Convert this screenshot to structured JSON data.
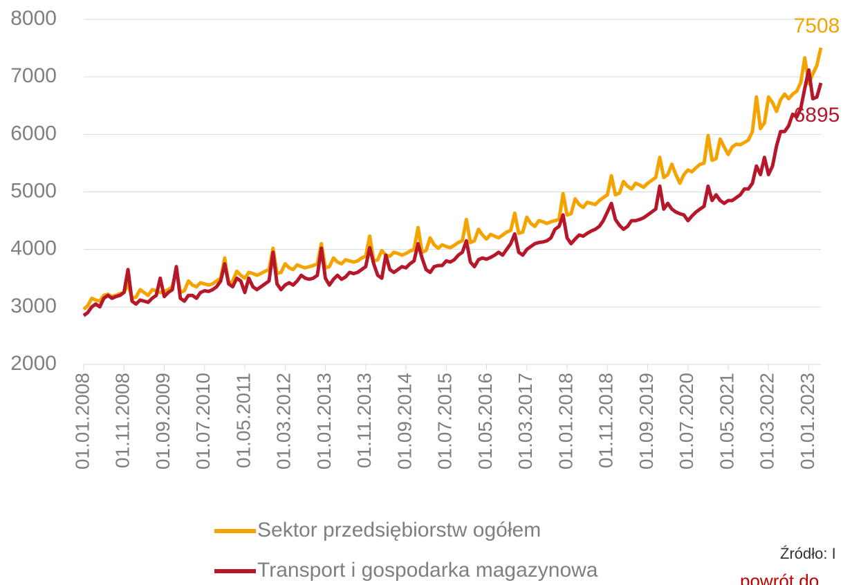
{
  "chart_data": {
    "type": "line",
    "categories": [
      "01.01.2008",
      null,
      null,
      null,
      null,
      null,
      null,
      null,
      null,
      null,
      "01.11.2008",
      null,
      null,
      null,
      null,
      null,
      null,
      null,
      null,
      null,
      "01.09.2009",
      null,
      null,
      null,
      null,
      null,
      null,
      null,
      null,
      null,
      "01.07.2010",
      null,
      null,
      null,
      null,
      null,
      null,
      null,
      null,
      null,
      "01.05.2011",
      null,
      null,
      null,
      null,
      null,
      null,
      null,
      null,
      null,
      "01.03.2012",
      null,
      null,
      null,
      null,
      null,
      null,
      null,
      null,
      null,
      "01.01.2013",
      null,
      null,
      null,
      null,
      null,
      null,
      null,
      null,
      null,
      "01.11.2013",
      null,
      null,
      null,
      null,
      null,
      null,
      null,
      null,
      null,
      "01.09.2014",
      null,
      null,
      null,
      null,
      null,
      null,
      null,
      null,
      null,
      "01.07.2015",
      null,
      null,
      null,
      null,
      null,
      null,
      null,
      null,
      null,
      "01.05.2016",
      null,
      null,
      null,
      null,
      null,
      null,
      null,
      null,
      null,
      "01.03.2017",
      null,
      null,
      null,
      null,
      null,
      null,
      null,
      null,
      null,
      "01.01.2018",
      null,
      null,
      null,
      null,
      null,
      null,
      null,
      null,
      null,
      "01.11.2018",
      null,
      null,
      null,
      null,
      null,
      null,
      null,
      null,
      null,
      "01.09.2019",
      null,
      null,
      null,
      null,
      null,
      null,
      null,
      null,
      null,
      "01.07.2020",
      null,
      null,
      null,
      null,
      null,
      null,
      null,
      null,
      null,
      "01.05.2021",
      null,
      null,
      null,
      null,
      null,
      null,
      null,
      null,
      null,
      "01.03.2022",
      null,
      null,
      null,
      null,
      null,
      null,
      null,
      null,
      null,
      "01.01.2023",
      null,
      null,
      null
    ],
    "series": [
      {
        "name": "Sektor przedsiębiorstw ogółem",
        "color": "#f5a300",
        "values": [
          2960,
          3020,
          3150,
          3120,
          3100,
          3200,
          3220,
          3180,
          3200,
          3230,
          3250,
          3400,
          3150,
          3170,
          3300,
          3250,
          3200,
          3300,
          3280,
          3250,
          3270,
          3300,
          3350,
          3650,
          3250,
          3280,
          3450,
          3380,
          3350,
          3420,
          3400,
          3380,
          3400,
          3450,
          3500,
          3850,
          3400,
          3450,
          3620,
          3550,
          3500,
          3600,
          3580,
          3550,
          3580,
          3620,
          3650,
          4020,
          3580,
          3600,
          3750,
          3680,
          3650,
          3730,
          3700,
          3680,
          3700,
          3720,
          3750,
          4100,
          3680,
          3700,
          3850,
          3780,
          3750,
          3820,
          3800,
          3780,
          3800,
          3850,
          3880,
          4230,
          3800,
          3820,
          3980,
          3900,
          3880,
          3950,
          3930,
          3900,
          3930,
          3970,
          4000,
          4380,
          3950,
          3980,
          4200,
          4080,
          4020,
          4080,
          4050,
          4030,
          4070,
          4120,
          4150,
          4520,
          4120,
          4150,
          4350,
          4250,
          4180,
          4260,
          4230,
          4200,
          4250,
          4300,
          4330,
          4630,
          4280,
          4300,
          4560,
          4450,
          4400,
          4500,
          4480,
          4450,
          4480,
          4500,
          4520,
          4970,
          4600,
          4620,
          4880,
          4780,
          4730,
          4820,
          4800,
          4780,
          4850,
          4900,
          4950,
          5280,
          4950,
          4980,
          5180,
          5100,
          5050,
          5150,
          5120,
          5080,
          5150,
          5200,
          5250,
          5600,
          5250,
          5300,
          5480,
          5300,
          5150,
          5300,
          5380,
          5350,
          5420,
          5480,
          5500,
          5980,
          5550,
          5580,
          5920,
          5780,
          5650,
          5780,
          5830,
          5820,
          5860,
          5900,
          6050,
          6650,
          6100,
          6200,
          6650,
          6550,
          6400,
          6600,
          6700,
          6620,
          6700,
          6750,
          6900,
          7330,
          6880,
          7050,
          7200,
          7508
        ]
      },
      {
        "name": "Transport i gospodarka magazynowa",
        "color": "#b5172b",
        "values": [
          2850,
          2900,
          3000,
          3050,
          3000,
          3150,
          3200,
          3150,
          3180,
          3200,
          3250,
          3650,
          3100,
          3050,
          3120,
          3100,
          3080,
          3150,
          3200,
          3500,
          3180,
          3250,
          3300,
          3700,
          3150,
          3100,
          3200,
          3200,
          3150,
          3250,
          3280,
          3270,
          3300,
          3350,
          3450,
          3750,
          3400,
          3350,
          3500,
          3450,
          3250,
          3500,
          3350,
          3300,
          3350,
          3400,
          3450,
          3950,
          3400,
          3300,
          3380,
          3420,
          3380,
          3450,
          3550,
          3500,
          3480,
          3500,
          3550,
          4020,
          3500,
          3380,
          3480,
          3550,
          3480,
          3520,
          3600,
          3580,
          3600,
          3650,
          3700,
          4030,
          3750,
          3550,
          3500,
          3900,
          3650,
          3600,
          3650,
          3700,
          3680,
          3750,
          3800,
          4100,
          3850,
          3650,
          3600,
          3700,
          3720,
          3720,
          3800,
          3780,
          3820,
          3900,
          3950,
          4150,
          3780,
          3700,
          3820,
          3850,
          3830,
          3860,
          3900,
          3950,
          3900,
          4000,
          4100,
          4270,
          3950,
          3900,
          4000,
          4050,
          4100,
          4120,
          4130,
          4150,
          4200,
          4350,
          4400,
          4600,
          4200,
          4100,
          4180,
          4250,
          4230,
          4280,
          4320,
          4350,
          4400,
          4500,
          4650,
          4800,
          4520,
          4420,
          4350,
          4400,
          4500,
          4500,
          4520,
          4550,
          4600,
          4650,
          4700,
          5100,
          4700,
          4800,
          4700,
          4650,
          4620,
          4600,
          4500,
          4580,
          4650,
          4700,
          4750,
          5100,
          4850,
          4950,
          4850,
          4800,
          4850,
          4850,
          4900,
          4950,
          5050,
          5050,
          5150,
          5450,
          5300,
          5600,
          5300,
          5450,
          5800,
          6050,
          6050,
          6150,
          6350,
          6300,
          6450,
          6800,
          7120,
          6620,
          6650,
          6895
        ]
      }
    ],
    "ylim": [
      2000,
      8000
    ],
    "yticks": [
      2000,
      3000,
      4000,
      5000,
      6000,
      7000,
      8000
    ],
    "grid": true,
    "annotations": [
      "Źródło: I",
      "powrót do"
    ]
  }
}
